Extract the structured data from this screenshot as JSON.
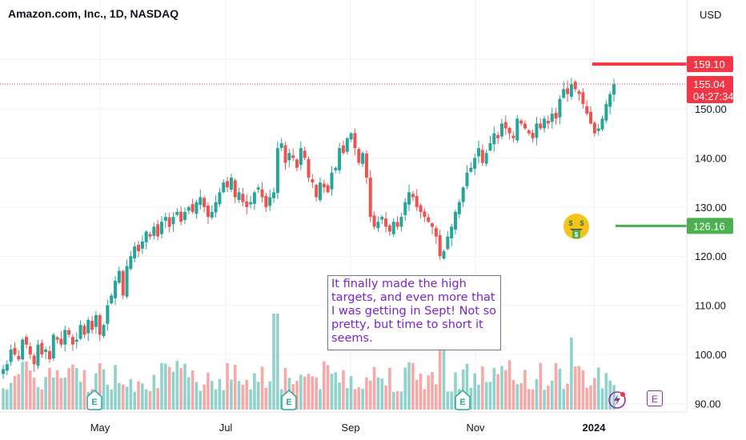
{
  "header": {
    "title": "Amazon.com, Inc., 1D, NASDAQ",
    "currency": "USD"
  },
  "note": "It finally made the high targets, and even more that I was getting in Sept! Not so pretty, but time to short it seems.",
  "colors": {
    "up": "#26a69a",
    "down": "#ef5350",
    "target_high": "#f23645",
    "target_low": "#4caf50",
    "note_text": "#7b24d0",
    "earnings": "#26a69a"
  },
  "icons": {
    "money_face": "money-mouth-face-icon",
    "earnings_marker": "E",
    "flash": "flash-icon"
  },
  "chart_data": {
    "type": "candlestick",
    "yaxis_ticks": [
      "90.00",
      "100.00",
      "110.00",
      "120.00",
      "130.00",
      "140.00",
      "150.00"
    ],
    "ylim": [
      88.5,
      169
    ],
    "xaxis_ticks": [
      "May",
      "Jul",
      "Sep",
      "Nov",
      "2024"
    ],
    "price_labels": [
      {
        "name": "target_high",
        "value": 159.1,
        "text": "159.10"
      },
      {
        "name": "last_price",
        "value": 155.04,
        "text": "155.04",
        "countdown": "04:27:34"
      },
      {
        "name": "target_low",
        "value": 126.16,
        "text": "126.16"
      }
    ],
    "earnings_markers": [
      "E",
      "E",
      "E"
    ],
    "closes": [
      97,
      98,
      101,
      100,
      99,
      103,
      102,
      100,
      98,
      102,
      100,
      101,
      99,
      104,
      103,
      102,
      105,
      104,
      102,
      103,
      106,
      104,
      107,
      105,
      108,
      104,
      106,
      110,
      112,
      115,
      117,
      112,
      118,
      120,
      122,
      121,
      123,
      125,
      124,
      126,
      124,
      127,
      128,
      126,
      128,
      129,
      127,
      129,
      130,
      129,
      131,
      132,
      130,
      128,
      129,
      131,
      133,
      135,
      134,
      136,
      132,
      133,
      131,
      130,
      131,
      133,
      134,
      132,
      130,
      132,
      133,
      142,
      143,
      139,
      141,
      140,
      138,
      142,
      140,
      136,
      135,
      132,
      135,
      134,
      133,
      137,
      138,
      142,
      141,
      144,
      145,
      142,
      139,
      141,
      136,
      128,
      126,
      127,
      128,
      126,
      125,
      127,
      126,
      128,
      131,
      133,
      132,
      130,
      129,
      128,
      127,
      126,
      124,
      120,
      121,
      124,
      126,
      129,
      131,
      134,
      137,
      138,
      140,
      142,
      139,
      141,
      143,
      145,
      144,
      147,
      146,
      145,
      144,
      148,
      147,
      146,
      145,
      144,
      147,
      146,
      148,
      147,
      149,
      148,
      152,
      154,
      153,
      155,
      154,
      153,
      151,
      149,
      147,
      145,
      146,
      148,
      151,
      153,
      155
    ]
  }
}
